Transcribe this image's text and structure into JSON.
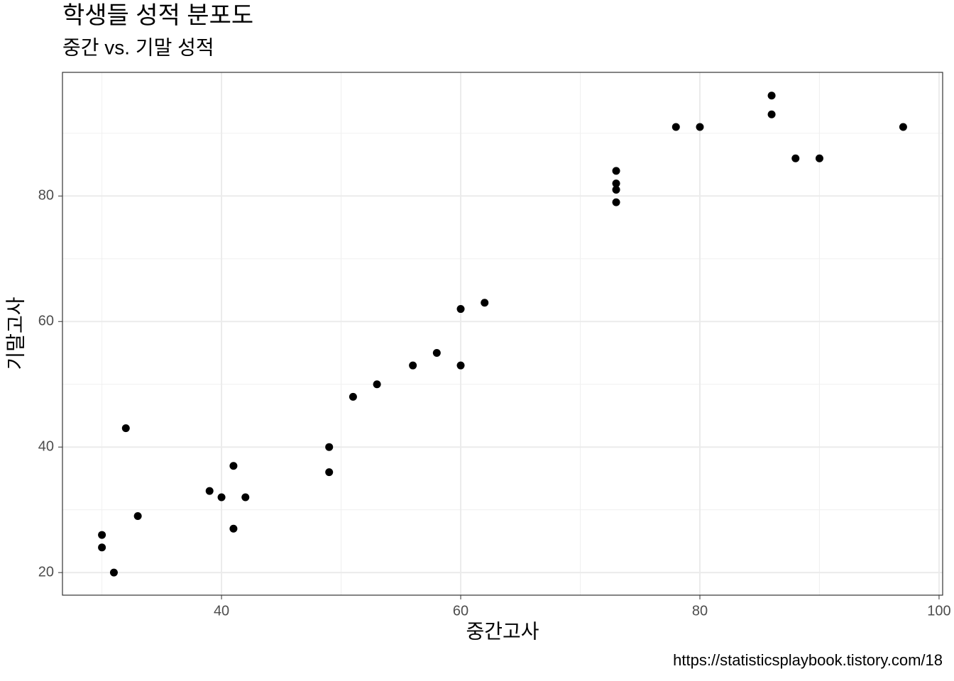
{
  "chart_data": {
    "type": "scatter",
    "title": "학생들 성적 분포도",
    "subtitle": "중간 vs. 기말 성적",
    "x_label": "중간고사",
    "y_label": "기말고사",
    "caption": "https://statisticsplaybook.tistory.com/18",
    "x": [
      30,
      30,
      31,
      32,
      33,
      39,
      40,
      41,
      41,
      42,
      49,
      49,
      51,
      53,
      56,
      58,
      60,
      60,
      62,
      73,
      73,
      73,
      73,
      78,
      80,
      86,
      86,
      88,
      90,
      97
    ],
    "values": [
      26,
      24,
      20,
      43,
      29,
      33,
      32,
      37,
      27,
      32,
      40,
      36,
      48,
      50,
      53,
      55,
      62,
      53,
      63,
      84,
      82,
      81,
      79,
      91,
      91,
      96,
      93,
      86,
      86,
      91
    ],
    "color": "#000000",
    "xlim": [
      26.7,
      100.3
    ],
    "ylim": [
      16.4,
      99.7
    ],
    "xticks": [
      40,
      60,
      80,
      100
    ],
    "yticks": [
      20,
      40,
      60,
      80
    ],
    "grid": true
  }
}
